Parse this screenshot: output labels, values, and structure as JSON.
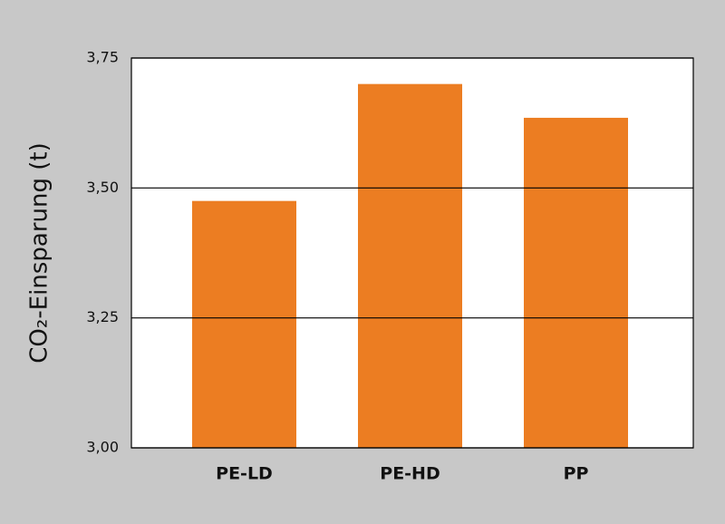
{
  "chart_data": {
    "type": "bar",
    "y_label": "CO₂-Einsparung (t)",
    "categories": [
      "PE-LD",
      "PE-HD",
      "PP"
    ],
    "values": [
      3.475,
      3.7,
      3.635
    ],
    "color": "#ec7d22",
    "ylim": [
      3.0,
      3.75
    ],
    "yticks": [
      {
        "value": 3.0,
        "label": "3,00"
      },
      {
        "value": 3.25,
        "label": "3,25"
      },
      {
        "value": 3.5,
        "label": "3,50"
      },
      {
        "value": 3.75,
        "label": "3,75"
      }
    ],
    "grid": true
  }
}
